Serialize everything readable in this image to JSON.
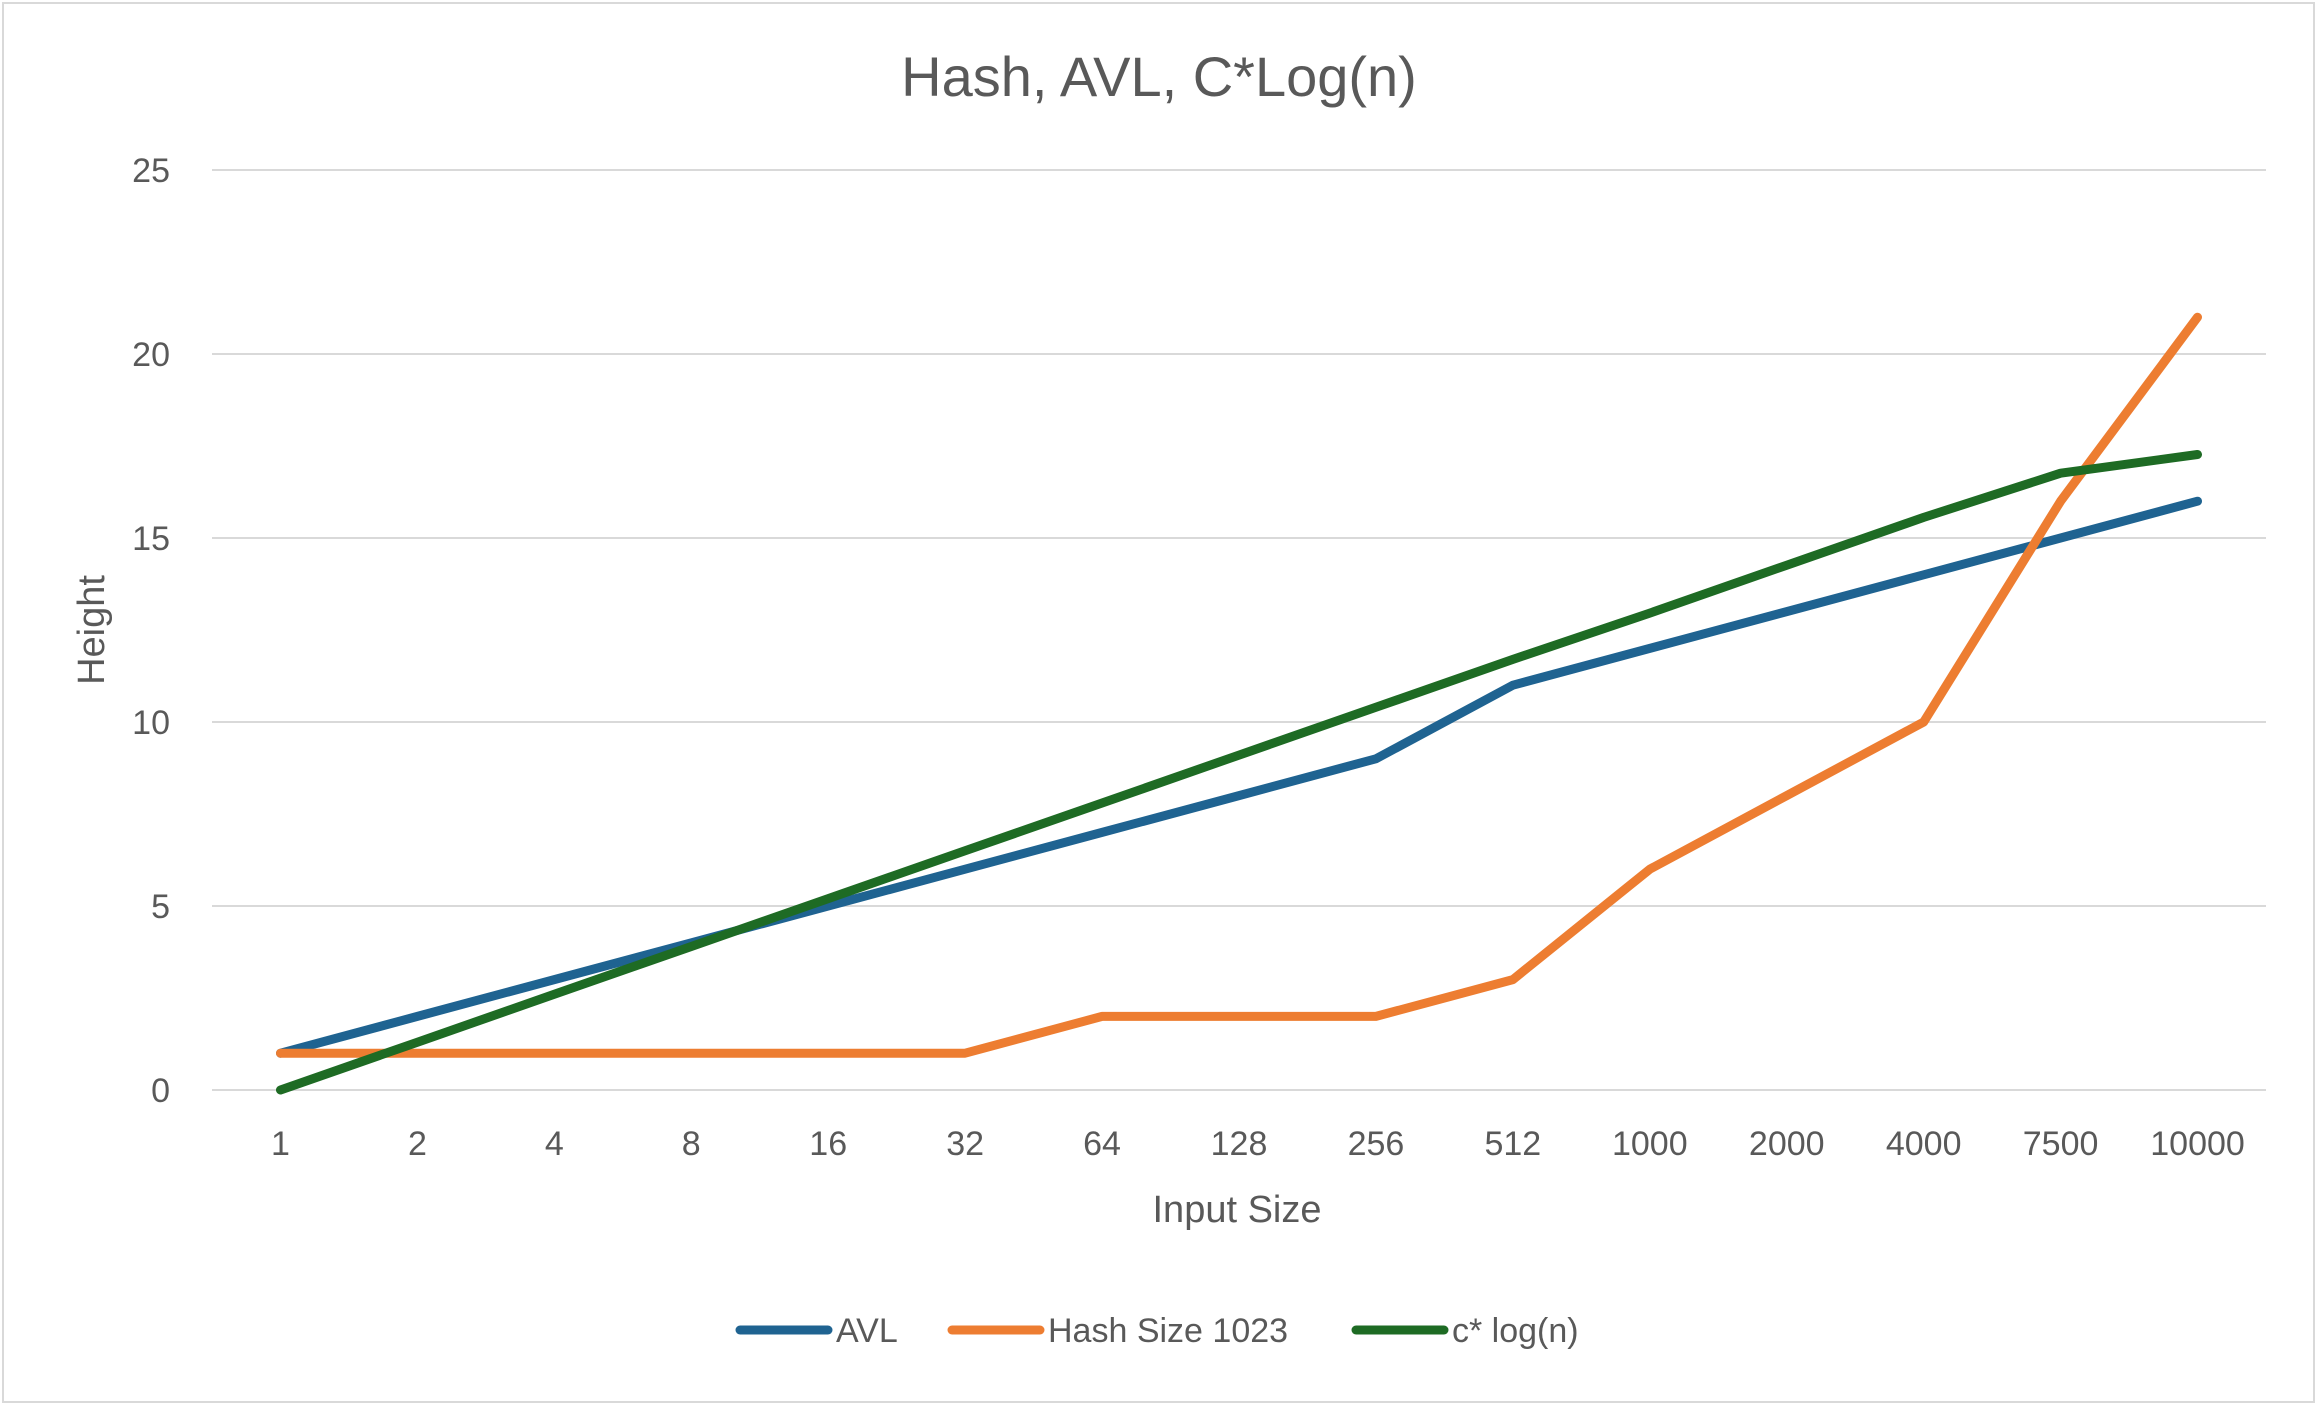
{
  "chart_data": {
    "type": "line",
    "title": "Hash, AVL, C*Log(n)",
    "xlabel": "Input Size",
    "ylabel": "Height",
    "categories": [
      "1",
      "2",
      "4",
      "8",
      "16",
      "32",
      "64",
      "128",
      "256",
      "512",
      "1000",
      "2000",
      "4000",
      "7500",
      "10000"
    ],
    "ylim": [
      0,
      25
    ],
    "yticks": [
      0,
      5,
      10,
      15,
      20,
      25
    ],
    "grid": true,
    "legend_position": "bottom",
    "series": [
      {
        "name": "AVL",
        "color": "#1f6391",
        "values": [
          1,
          2,
          3,
          4,
          5,
          6,
          7,
          8,
          9,
          11,
          12,
          13,
          14,
          15,
          16
        ]
      },
      {
        "name": "Hash Size 1023",
        "color": "#ed7d31",
        "values": [
          1,
          1,
          1,
          1,
          1,
          1,
          2,
          2,
          2,
          3,
          6,
          8,
          10,
          16,
          21
        ]
      },
      {
        "name": "c* log(n)",
        "color": "#1e6b24",
        "values": [
          0,
          1.3,
          2.6,
          3.9,
          5.2,
          6.5,
          7.8,
          9.1,
          10.4,
          11.7,
          12.96,
          14.26,
          15.56,
          16.76,
          17.27
        ]
      }
    ]
  }
}
